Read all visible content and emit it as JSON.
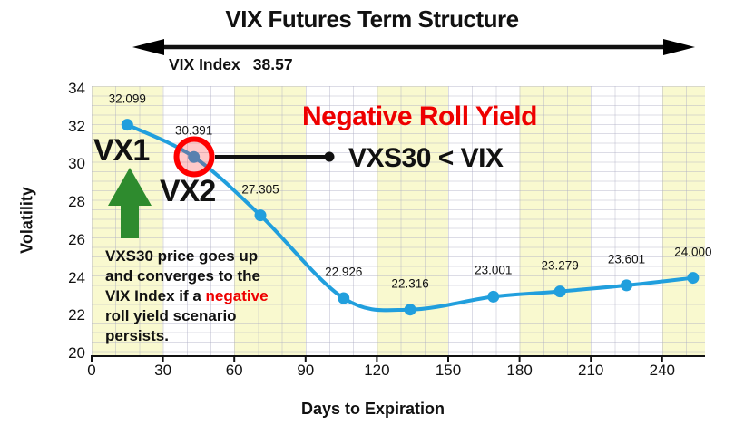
{
  "header": {
    "title": "VIX Futures Term Structure",
    "vix_index_label": "VIX Index",
    "vix_index_value": "38.57"
  },
  "chart_data": {
    "type": "line",
    "title": "VIX Futures Term Structure",
    "xlabel": "Days to Expiration",
    "ylabel": "Volatility",
    "series": [
      {
        "name": "VIX futures term structure",
        "x": [
          15,
          43,
          71,
          106,
          134,
          169,
          197,
          225,
          253
        ],
        "values": [
          32.099,
          30.391,
          27.305,
          22.926,
          22.316,
          23.001,
          23.279,
          23.601,
          24.0
        ],
        "point_labels": [
          "32.099",
          "30.391",
          "27.305",
          "22.926",
          "22.316",
          "23.001",
          "23.279",
          "23.601",
          "24.000"
        ]
      }
    ],
    "x_ticks": [
      0,
      30,
      60,
      90,
      120,
      150,
      180,
      210,
      240
    ],
    "y_ticks": [
      20,
      22,
      24,
      26,
      28,
      30,
      32,
      34
    ],
    "xlim": [
      0,
      258
    ],
    "ylim": [
      20,
      34
    ],
    "grid": true,
    "legend": "none",
    "vix_index": 38.57,
    "highlighted_point": {
      "label": "VX2",
      "value": 30.391
    }
  },
  "annotations": {
    "vx1": "VX1",
    "vx2": "VX2",
    "negative_roll_yield": "Negative Roll Yield",
    "vxs30_lt_vix": "VXS30 < VIX",
    "note": {
      "l1": "VXS30 price goes up",
      "l2": "and converges to the",
      "l3a": "VIX Index if a ",
      "l3red": "negative",
      "l4": "roll yield scenario",
      "l5": "persists."
    }
  },
  "colors": {
    "line_blue": "#219fdd",
    "band_yellow": "#f9f9cf",
    "highlight_red": "#ee0000",
    "circle_red": "#ff0000",
    "arrow_green": "#2e8b2e",
    "text": "#111111"
  }
}
